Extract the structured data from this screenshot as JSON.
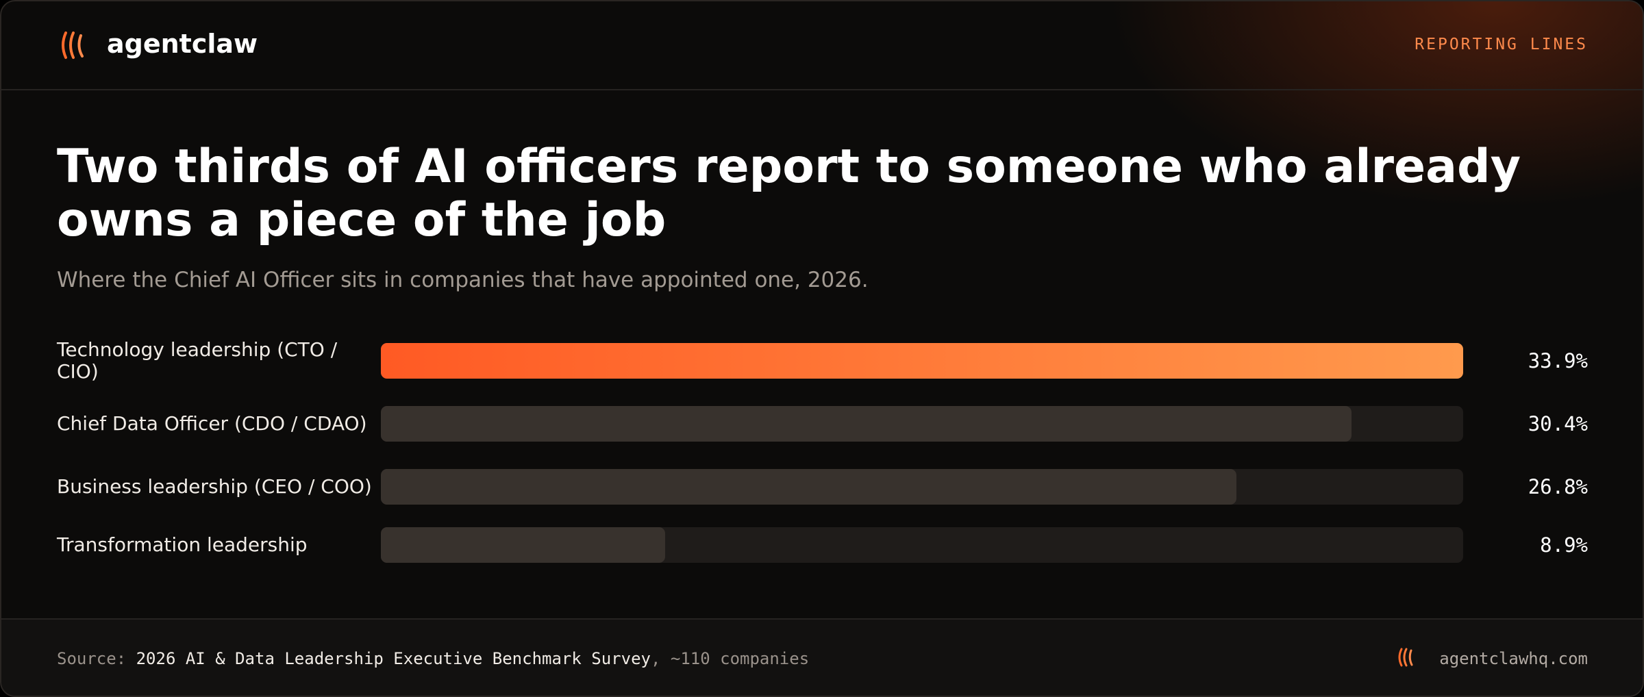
{
  "brand": "agentclaw",
  "header_tag": "REPORTING LINES",
  "chart_data": {
    "type": "bar",
    "orientation": "horizontal",
    "title": "Two thirds of AI officers report to someone who already owns a piece of the job",
    "subtitle": "Where the Chief AI Officer sits in companies that have appointed one, 2026.",
    "categories": [
      "Technology leadership (CTO / CIO)",
      "Chief Data Officer (CDO / CDAO)",
      "Business leadership (CEO / COO)",
      "Transformation leadership"
    ],
    "values": [
      33.9,
      30.4,
      26.8,
      8.9
    ],
    "value_labels": [
      "33.9%",
      "30.4%",
      "26.8%",
      "8.9%"
    ],
    "colors": [
      "#ff5a24",
      "#38322d",
      "#38322d",
      "#38322d"
    ],
    "xlim": [
      0,
      33.9
    ]
  },
  "footer": {
    "source_label": "Source:",
    "source_name": "2026 AI & Data Leadership Executive Benchmark Survey",
    "source_note": ", ~110 companies",
    "site": "agentclawhq.com"
  }
}
